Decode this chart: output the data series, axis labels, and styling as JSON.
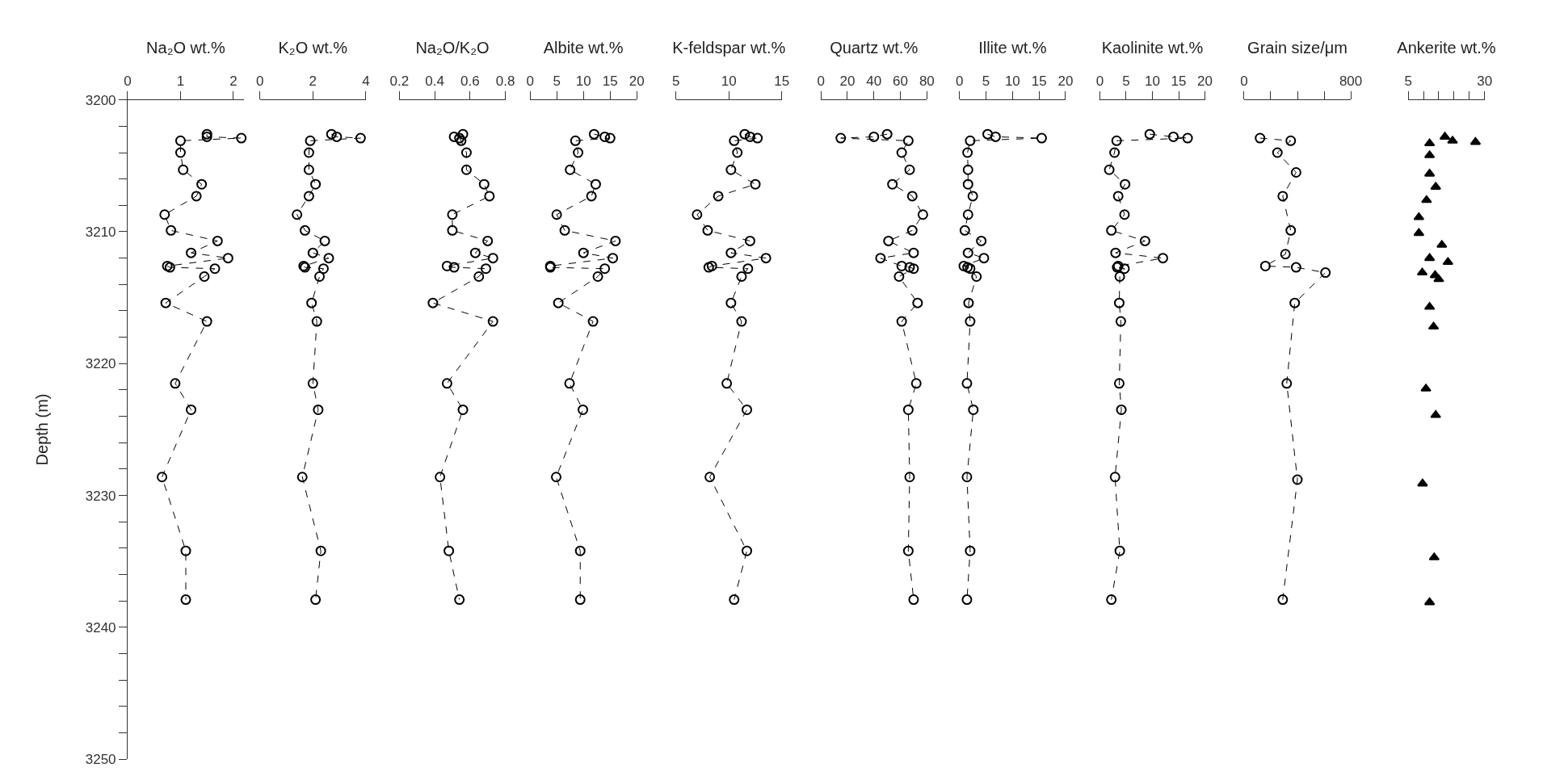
{
  "chart_data": [
    {
      "type": "line",
      "orientation": "horizontal",
      "xlabel": "Na₂O wt.%",
      "ylabel": "Depth (m)",
      "color": "#000000",
      "marker": "circle",
      "line_style": "dashed",
      "x": [
        3202.6,
        3202.8,
        3202.9,
        3203.1,
        3204.0,
        3205.3,
        3206.4,
        3207.3,
        3208.7,
        3209.9,
        3210.7,
        3211.6,
        3212.0,
        3212.6,
        3212.7,
        3212.8,
        3213.4,
        3215.4,
        3216.8,
        3221.5,
        3223.5,
        3228.6,
        3234.2,
        3237.9
      ],
      "values": [
        1.5,
        1.5,
        2.15,
        1.0,
        1.0,
        1.05,
        1.4,
        1.3,
        0.7,
        0.82,
        1.7,
        1.2,
        1.9,
        0.75,
        0.8,
        1.65,
        1.45,
        0.72,
        1.5,
        0.9,
        1.2,
        0.65,
        1.1,
        1.1
      ],
      "xlim": [
        0,
        2.2
      ],
      "xticks": [
        0,
        1,
        2
      ],
      "ylim": [
        3250,
        3200
      ],
      "yticks": [
        3200,
        {
          "value": 3202,
          "label": null
        },
        {
          "value": 3204,
          "label": null
        },
        {
          "value": 3206,
          "label": null
        },
        {
          "value": 3208,
          "label": null
        },
        3210,
        {
          "value": 3212,
          "label": null
        },
        {
          "value": 3214,
          "label": null
        },
        {
          "value": 3216,
          "label": null
        },
        {
          "value": 3218,
          "label": null
        },
        3220,
        {
          "value": 3222,
          "label": null
        },
        {
          "value": 3224,
          "label": null
        },
        {
          "value": 3226,
          "label": null
        },
        {
          "value": 3228,
          "label": null
        },
        3230,
        {
          "value": 3232,
          "label": null
        },
        {
          "value": 3234,
          "label": null
        },
        {
          "value": 3236,
          "label": null
        },
        {
          "value": 3238,
          "label": null
        },
        3240,
        {
          "value": 3242,
          "label": null
        },
        {
          "value": 3244,
          "label": null
        },
        {
          "value": 3246,
          "label": null
        },
        {
          "value": 3248,
          "label": null
        },
        3250
      ]
    },
    {
      "type": "line",
      "orientation": "horizontal",
      "xlabel": "K₂O wt.%",
      "color": "#000000",
      "marker": "circle",
      "line_style": "dashed",
      "tick_labels": "x",
      "x": [
        3202.6,
        3202.8,
        3202.9,
        3203.1,
        3204.0,
        3205.3,
        3206.4,
        3207.3,
        3208.7,
        3209.9,
        3210.7,
        3211.6,
        3212.0,
        3212.6,
        3212.7,
        3212.8,
        3213.4,
        3215.4,
        3216.8,
        3221.5,
        3223.5,
        3228.6,
        3234.2,
        3237.9
      ],
      "values": [
        2.7,
        2.9,
        3.8,
        1.9,
        1.85,
        1.85,
        2.1,
        1.85,
        1.4,
        1.7,
        2.45,
        2.0,
        2.6,
        1.65,
        1.7,
        2.4,
        2.25,
        1.95,
        2.15,
        2.0,
        2.2,
        1.6,
        2.3,
        2.1
      ],
      "xlim": [
        0,
        4
      ],
      "xticks": [
        0,
        2,
        4
      ],
      "ylim": [
        3250,
        3200
      ]
    },
    {
      "type": "line",
      "orientation": "horizontal",
      "xlabel": "Na₂O/K₂O",
      "color": "#000000",
      "marker": "circle",
      "line_style": "dashed",
      "tick_labels": "x",
      "x": [
        3202.6,
        3202.8,
        3202.9,
        3203.1,
        3204.0,
        3205.3,
        3206.4,
        3207.3,
        3208.7,
        3209.9,
        3210.7,
        3211.6,
        3212.0,
        3212.6,
        3212.7,
        3212.8,
        3213.4,
        3215.4,
        3216.8,
        3221.5,
        3223.5,
        3228.6,
        3234.2,
        3237.9
      ],
      "values": [
        0.56,
        0.51,
        0.54,
        0.55,
        0.58,
        0.58,
        0.68,
        0.71,
        0.5,
        0.5,
        0.7,
        0.63,
        0.73,
        0.47,
        0.51,
        0.69,
        0.65,
        0.39,
        0.73,
        0.47,
        0.56,
        0.43,
        0.48,
        0.54
      ],
      "xlim": [
        0.2,
        0.8
      ],
      "xticks": [
        0.2,
        0.4,
        0.6,
        0.8
      ],
      "ylim": [
        3250,
        3200
      ]
    },
    {
      "type": "line",
      "orientation": "horizontal",
      "xlabel": "Albite wt.%",
      "color": "#000000",
      "marker": "circle",
      "line_style": "dashed",
      "tick_labels": "x",
      "x": [
        3202.6,
        3202.8,
        3202.9,
        3203.1,
        3204.0,
        3205.3,
        3206.4,
        3207.3,
        3208.7,
        3209.9,
        3210.7,
        3211.6,
        3212.0,
        3212.6,
        3212.7,
        3212.8,
        3213.4,
        3215.4,
        3216.8,
        3221.5,
        3223.5,
        3228.6,
        3234.2,
        3237.9
      ],
      "values": [
        12,
        14,
        15,
        8.5,
        9,
        7.5,
        12.3,
        11.5,
        5,
        6.5,
        16,
        10,
        15.5,
        3.8,
        3.8,
        14,
        12.7,
        5.3,
        11.8,
        7.4,
        9.9,
        4.9,
        9.4,
        9.4
      ],
      "xlim": [
        0,
        20
      ],
      "xticks": [
        0,
        5,
        10,
        15,
        20
      ],
      "ylim": [
        3250,
        3200
      ]
    },
    {
      "type": "line",
      "orientation": "horizontal",
      "xlabel": "K-feldspar wt.%",
      "color": "#000000",
      "marker": "circle",
      "line_style": "dashed",
      "tick_labels": "x",
      "x": [
        3202.6,
        3202.8,
        3202.9,
        3203.1,
        3204.0,
        3205.3,
        3206.4,
        3207.3,
        3208.7,
        3209.9,
        3210.7,
        3211.6,
        3212.0,
        3212.6,
        3212.7,
        3212.8,
        3213.4,
        3215.4,
        3216.8,
        3221.5,
        3223.5,
        3228.6,
        3234.2,
        3237.9
      ],
      "values": [
        11.5,
        12,
        12.7,
        10.5,
        10.8,
        10.2,
        12.5,
        9,
        7,
        8,
        12,
        10.2,
        13.5,
        8.4,
        8.1,
        11.8,
        11.2,
        10.2,
        11.2,
        9.8,
        11.7,
        8.2,
        11.7,
        10.5
      ],
      "xlim": [
        5,
        15
      ],
      "xticks": [
        5,
        10,
        15
      ],
      "ylim": [
        3250,
        3200
      ]
    },
    {
      "type": "line",
      "orientation": "horizontal",
      "xlabel": "Quartz wt.%",
      "color": "#000000",
      "marker": "circle",
      "line_style": "dashed",
      "tick_labels": "x",
      "x": [
        3202.6,
        3202.8,
        3202.9,
        3203.1,
        3204.0,
        3205.3,
        3206.4,
        3207.3,
        3208.7,
        3209.9,
        3210.7,
        3211.6,
        3212.0,
        3212.6,
        3212.7,
        3212.8,
        3213.4,
        3215.4,
        3216.8,
        3221.5,
        3223.5,
        3228.6,
        3234.2,
        3237.9
      ],
      "values": [
        50,
        40,
        15,
        66,
        61,
        67,
        54,
        69,
        77,
        69,
        51,
        70,
        45,
        61,
        67,
        70,
        59,
        73,
        61,
        72,
        66,
        67,
        66,
        70
      ],
      "xlim": [
        0,
        80
      ],
      "xticks": [
        0,
        20,
        40,
        60,
        80
      ],
      "ylim": [
        3250,
        3200
      ]
    },
    {
      "type": "line",
      "orientation": "horizontal",
      "xlabel": "Illite wt.%",
      "color": "#000000",
      "marker": "circle",
      "line_style": "dashed",
      "tick_labels": "x",
      "x": [
        3202.6,
        3202.8,
        3202.9,
        3203.1,
        3204.0,
        3205.3,
        3206.4,
        3207.3,
        3208.7,
        3209.9,
        3210.7,
        3211.6,
        3212.0,
        3212.6,
        3212.7,
        3212.8,
        3213.4,
        3215.4,
        3216.8,
        3221.5,
        3223.5,
        3228.6,
        3234.2,
        3237.9
      ],
      "values": [
        5.3,
        6.8,
        15.5,
        2,
        1.5,
        1.6,
        1.6,
        2.5,
        1.6,
        1,
        4.1,
        1.6,
        4.6,
        0.8,
        1.5,
        2,
        3.2,
        1.7,
        2,
        1.4,
        2.6,
        1.4,
        2,
        1.4
      ],
      "xlim": [
        0,
        20
      ],
      "xticks": [
        0,
        5,
        10,
        15,
        20
      ],
      "ylim": [
        3250,
        3200
      ]
    },
    {
      "type": "line",
      "orientation": "horizontal",
      "xlabel": "Kaolinite wt.%",
      "color": "#000000",
      "marker": "circle",
      "line_style": "dashed",
      "tick_labels": "x",
      "x": [
        3202.6,
        3202.8,
        3202.9,
        3203.1,
        3204.0,
        3205.3,
        3206.4,
        3207.3,
        3208.7,
        3209.9,
        3210.7,
        3211.6,
        3212.0,
        3212.6,
        3212.7,
        3212.8,
        3213.4,
        3215.4,
        3216.8,
        3221.5,
        3223.5,
        3228.6,
        3234.2,
        3237.9
      ],
      "values": [
        9.5,
        14,
        16.7,
        3.2,
        2.8,
        1.8,
        4.8,
        3.5,
        4.7,
        2.2,
        8.6,
        3,
        12,
        3.5,
        3.3,
        4.7,
        3.8,
        3.7,
        4,
        3.7,
        4.1,
        2.9,
        3.8,
        2.2
      ],
      "xlim": [
        0,
        20
      ],
      "xticks": [
        0,
        5,
        10,
        15,
        20
      ],
      "ylim": [
        3250,
        3200
      ]
    },
    {
      "type": "line",
      "orientation": "horizontal",
      "xlabel": "Grain size/μm",
      "color": "#000000",
      "marker": "circle",
      "line_style": "dashed",
      "tick_labels": "x",
      "x": [
        3202.9,
        3203.1,
        3204.0,
        3205.5,
        3207.3,
        3209.9,
        3211.7,
        3212.6,
        3212.7,
        3213.1,
        3215.4,
        3221.5,
        3228.8,
        3237.9
      ],
      "values": [
        120,
        350,
        250,
        390,
        290,
        350,
        310,
        160,
        390,
        610,
        380,
        320,
        400,
        290
      ],
      "xlim": [
        0,
        800
      ],
      "xticks": [
        0,
        {
          "value": 200,
          "label": null
        },
        {
          "value": 400,
          "label": null
        },
        {
          "value": 600,
          "label": null
        },
        800
      ],
      "ylim": [
        3250,
        3200
      ]
    },
    {
      "type": "scatter",
      "orientation": "horizontal",
      "xlabel": "Ankerite wt.%",
      "color": "#000000",
      "marker": "triangle",
      "tick_labels": "x",
      "x": [
        3202.8,
        3203.1,
        3203.2,
        3203.3,
        3204.2,
        3205.6,
        3206.6,
        3207.6,
        3208.9,
        3210.1,
        3211.0,
        3212.0,
        3212.3,
        3213.1,
        3213.3,
        3213.6,
        3215.7,
        3217.2,
        3221.9,
        3223.9,
        3229.1,
        3234.7,
        3238.1
      ],
      "values": [
        17,
        19.5,
        27,
        12,
        12,
        12,
        14,
        11,
        8.5,
        8.5,
        16,
        12,
        18,
        9.6,
        13.8,
        15,
        12,
        13.3,
        10.8,
        14,
        9.7,
        13.5,
        12
      ],
      "xlim": [
        5,
        30
      ],
      "xticks": [
        5,
        {
          "value": 10,
          "label": null
        },
        {
          "value": 15,
          "label": null
        },
        {
          "value": 20,
          "label": null
        },
        {
          "value": 25,
          "label": null
        },
        30
      ],
      "ylim": [
        3250,
        3200
      ]
    }
  ]
}
